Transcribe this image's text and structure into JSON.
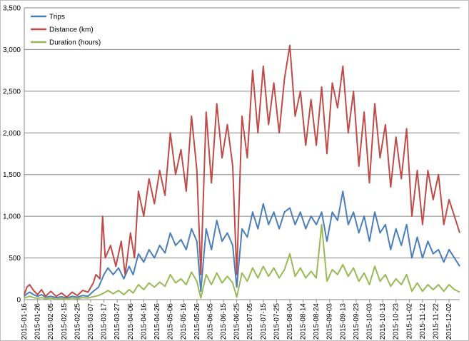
{
  "chart_data": {
    "type": "line",
    "title": "",
    "xlabel": "",
    "ylabel": "",
    "ylim": [
      0,
      3500
    ],
    "yticks": [
      0,
      500,
      1000,
      1500,
      2000,
      2500,
      3000,
      3500
    ],
    "ytick_labels": [
      "0",
      "500",
      "1,000",
      "1,500",
      "2,000",
      "2,500",
      "3,000",
      "3,500"
    ],
    "x_start": "2015-01-16",
    "x_end": "2015-12-10",
    "xtick_labels": [
      "2015-01-16",
      "2015-01-26",
      "2015-02-05",
      "2015-02-15",
      "2015-02-25",
      "2015-03-07",
      "2015-03-17",
      "2015-03-27",
      "2015-04-06",
      "2015-04-16",
      "2015-04-26",
      "2015-05-06",
      "2015-05-16",
      "2015-05-26",
      "2015-06-05",
      "2015-06-15",
      "2015-06-25",
      "2015-07-05",
      "2015-07-15",
      "2015-07-25",
      "2015-08-04",
      "2015-08-14",
      "2015-08-24",
      "2015-09-03",
      "2015-09-13",
      "2015-09-23",
      "2015-10-03",
      "2015-10-13",
      "2015-10-23",
      "2015-11-02",
      "2015-11-12",
      "2015-11-22",
      "2015-12-02"
    ],
    "grid": true,
    "legend_position": "top-left",
    "series": [
      {
        "name": "Trips",
        "color": "#4a7ebb",
        "points": [
          [
            "2015-01-16",
            40
          ],
          [
            "2015-01-18",
            70
          ],
          [
            "2015-01-20",
            90
          ],
          [
            "2015-01-23",
            60
          ],
          [
            "2015-01-26",
            40
          ],
          [
            "2015-01-29",
            60
          ],
          [
            "2015-02-01",
            30
          ],
          [
            "2015-02-05",
            40
          ],
          [
            "2015-02-09",
            25
          ],
          [
            "2015-02-13",
            35
          ],
          [
            "2015-02-17",
            20
          ],
          [
            "2015-02-21",
            40
          ],
          [
            "2015-02-25",
            30
          ],
          [
            "2015-03-01",
            50
          ],
          [
            "2015-03-05",
            40
          ],
          [
            "2015-03-09",
            100
          ],
          [
            "2015-03-13",
            150
          ],
          [
            "2015-03-17",
            300
          ],
          [
            "2015-03-20",
            380
          ],
          [
            "2015-03-24",
            300
          ],
          [
            "2015-03-28",
            380
          ],
          [
            "2015-04-01",
            250
          ],
          [
            "2015-04-05",
            400
          ],
          [
            "2015-04-08",
            300
          ],
          [
            "2015-04-12",
            550
          ],
          [
            "2015-04-16",
            450
          ],
          [
            "2015-04-20",
            600
          ],
          [
            "2015-04-24",
            500
          ],
          [
            "2015-04-28",
            650
          ],
          [
            "2015-05-02",
            560
          ],
          [
            "2015-05-06",
            800
          ],
          [
            "2015-05-10",
            650
          ],
          [
            "2015-05-14",
            720
          ],
          [
            "2015-05-18",
            600
          ],
          [
            "2015-05-22",
            850
          ],
          [
            "2015-05-26",
            700
          ],
          [
            "2015-05-29",
            100
          ],
          [
            "2015-06-02",
            850
          ],
          [
            "2015-06-06",
            600
          ],
          [
            "2015-06-10",
            950
          ],
          [
            "2015-06-14",
            700
          ],
          [
            "2015-06-18",
            800
          ],
          [
            "2015-06-22",
            650
          ],
          [
            "2015-06-25",
            150
          ],
          [
            "2015-06-29",
            850
          ],
          [
            "2015-07-03",
            750
          ],
          [
            "2015-07-07",
            1050
          ],
          [
            "2015-07-11",
            850
          ],
          [
            "2015-07-15",
            1150
          ],
          [
            "2015-07-19",
            900
          ],
          [
            "2015-07-23",
            1050
          ],
          [
            "2015-07-27",
            850
          ],
          [
            "2015-07-31",
            1050
          ],
          [
            "2015-08-04",
            1100
          ],
          [
            "2015-08-08",
            900
          ],
          [
            "2015-08-12",
            1050
          ],
          [
            "2015-08-16",
            850
          ],
          [
            "2015-08-20",
            1000
          ],
          [
            "2015-08-24",
            900
          ],
          [
            "2015-08-28",
            1050
          ],
          [
            "2015-09-01",
            700
          ],
          [
            "2015-09-05",
            1050
          ],
          [
            "2015-09-09",
            950
          ],
          [
            "2015-09-13",
            1300
          ],
          [
            "2015-09-17",
            900
          ],
          [
            "2015-09-21",
            1050
          ],
          [
            "2015-09-25",
            800
          ],
          [
            "2015-09-29",
            1000
          ],
          [
            "2015-10-03",
            700
          ],
          [
            "2015-10-07",
            1050
          ],
          [
            "2015-10-11",
            800
          ],
          [
            "2015-10-15",
            900
          ],
          [
            "2015-10-19",
            600
          ],
          [
            "2015-10-23",
            850
          ],
          [
            "2015-10-27",
            650
          ],
          [
            "2015-10-31",
            900
          ],
          [
            "2015-11-04",
            500
          ],
          [
            "2015-11-08",
            750
          ],
          [
            "2015-11-12",
            500
          ],
          [
            "2015-11-16",
            700
          ],
          [
            "2015-11-20",
            550
          ],
          [
            "2015-11-24",
            600
          ],
          [
            "2015-11-28",
            450
          ],
          [
            "2015-12-02",
            600
          ],
          [
            "2015-12-06",
            500
          ],
          [
            "2015-12-10",
            400
          ]
        ]
      },
      {
        "name": "Distance (km)",
        "color": "#be4b48",
        "points": [
          [
            "2015-01-16",
            60
          ],
          [
            "2015-01-18",
            150
          ],
          [
            "2015-01-20",
            180
          ],
          [
            "2015-01-23",
            110
          ],
          [
            "2015-01-26",
            60
          ],
          [
            "2015-01-29",
            120
          ],
          [
            "2015-02-01",
            40
          ],
          [
            "2015-02-05",
            100
          ],
          [
            "2015-02-09",
            40
          ],
          [
            "2015-02-13",
            80
          ],
          [
            "2015-02-17",
            30
          ],
          [
            "2015-02-21",
            90
          ],
          [
            "2015-02-25",
            50
          ],
          [
            "2015-03-01",
            110
          ],
          [
            "2015-03-05",
            90
          ],
          [
            "2015-03-09",
            200
          ],
          [
            "2015-03-11",
            300
          ],
          [
            "2015-03-14",
            250
          ],
          [
            "2015-03-16",
            1000
          ],
          [
            "2015-03-18",
            500
          ],
          [
            "2015-03-22",
            650
          ],
          [
            "2015-03-26",
            400
          ],
          [
            "2015-03-30",
            700
          ],
          [
            "2015-04-02",
            300
          ],
          [
            "2015-04-06",
            800
          ],
          [
            "2015-04-09",
            500
          ],
          [
            "2015-04-12",
            1300
          ],
          [
            "2015-04-16",
            1000
          ],
          [
            "2015-04-20",
            1450
          ],
          [
            "2015-04-24",
            1150
          ],
          [
            "2015-04-28",
            1550
          ],
          [
            "2015-05-02",
            1250
          ],
          [
            "2015-05-06",
            2000
          ],
          [
            "2015-05-10",
            1500
          ],
          [
            "2015-05-14",
            1800
          ],
          [
            "2015-05-18",
            1300
          ],
          [
            "2015-05-22",
            2200
          ],
          [
            "2015-05-26",
            1550
          ],
          [
            "2015-05-29",
            300
          ],
          [
            "2015-06-02",
            2250
          ],
          [
            "2015-06-06",
            1400
          ],
          [
            "2015-06-10",
            2350
          ],
          [
            "2015-06-14",
            1700
          ],
          [
            "2015-06-18",
            2100
          ],
          [
            "2015-06-22",
            1600
          ],
          [
            "2015-06-25",
            300
          ],
          [
            "2015-06-29",
            2200
          ],
          [
            "2015-07-03",
            1700
          ],
          [
            "2015-07-07",
            2750
          ],
          [
            "2015-07-11",
            2000
          ],
          [
            "2015-07-15",
            2800
          ],
          [
            "2015-07-19",
            2100
          ],
          [
            "2015-07-23",
            2600
          ],
          [
            "2015-07-27",
            2000
          ],
          [
            "2015-07-31",
            2650
          ],
          [
            "2015-08-04",
            3050
          ],
          [
            "2015-08-08",
            2200
          ],
          [
            "2015-08-12",
            2500
          ],
          [
            "2015-08-16",
            1850
          ],
          [
            "2015-08-20",
            2400
          ],
          [
            "2015-08-24",
            1850
          ],
          [
            "2015-08-28",
            2550
          ],
          [
            "2015-09-01",
            1750
          ],
          [
            "2015-09-05",
            2600
          ],
          [
            "2015-09-09",
            2300
          ],
          [
            "2015-09-13",
            2800
          ],
          [
            "2015-09-17",
            2000
          ],
          [
            "2015-09-21",
            2500
          ],
          [
            "2015-09-25",
            1600
          ],
          [
            "2015-09-29",
            2250
          ],
          [
            "2015-10-03",
            1400
          ],
          [
            "2015-10-07",
            2350
          ],
          [
            "2015-10-11",
            1700
          ],
          [
            "2015-10-15",
            2100
          ],
          [
            "2015-10-19",
            1350
          ],
          [
            "2015-10-23",
            1950
          ],
          [
            "2015-10-27",
            1450
          ],
          [
            "2015-10-31",
            2050
          ],
          [
            "2015-11-04",
            1000
          ],
          [
            "2015-11-08",
            1550
          ],
          [
            "2015-11-12",
            900
          ],
          [
            "2015-11-16",
            1550
          ],
          [
            "2015-11-20",
            1200
          ],
          [
            "2015-11-24",
            1500
          ],
          [
            "2015-11-28",
            900
          ],
          [
            "2015-12-02",
            1200
          ],
          [
            "2015-12-06",
            1000
          ],
          [
            "2015-12-10",
            800
          ]
        ]
      },
      {
        "name": "Duration (hours)",
        "color": "#98b954",
        "points": [
          [
            "2015-01-16",
            20
          ],
          [
            "2015-01-18",
            30
          ],
          [
            "2015-01-20",
            40
          ],
          [
            "2015-01-23",
            25
          ],
          [
            "2015-01-26",
            15
          ],
          [
            "2015-01-29",
            25
          ],
          [
            "2015-02-01",
            10
          ],
          [
            "2015-02-05",
            20
          ],
          [
            "2015-02-09",
            8
          ],
          [
            "2015-02-13",
            15
          ],
          [
            "2015-02-17",
            8
          ],
          [
            "2015-02-21",
            20
          ],
          [
            "2015-02-25",
            12
          ],
          [
            "2015-03-01",
            25
          ],
          [
            "2015-03-05",
            20
          ],
          [
            "2015-03-09",
            35
          ],
          [
            "2015-03-13",
            50
          ],
          [
            "2015-03-17",
            80
          ],
          [
            "2015-03-20",
            110
          ],
          [
            "2015-03-24",
            70
          ],
          [
            "2015-03-28",
            110
          ],
          [
            "2015-04-01",
            60
          ],
          [
            "2015-04-05",
            120
          ],
          [
            "2015-04-08",
            80
          ],
          [
            "2015-04-12",
            180
          ],
          [
            "2015-04-16",
            120
          ],
          [
            "2015-04-20",
            200
          ],
          [
            "2015-04-24",
            150
          ],
          [
            "2015-04-28",
            210
          ],
          [
            "2015-05-02",
            160
          ],
          [
            "2015-05-06",
            300
          ],
          [
            "2015-05-10",
            200
          ],
          [
            "2015-05-14",
            250
          ],
          [
            "2015-05-18",
            180
          ],
          [
            "2015-05-22",
            330
          ],
          [
            "2015-05-26",
            220
          ],
          [
            "2015-05-29",
            20
          ],
          [
            "2015-06-02",
            300
          ],
          [
            "2015-06-06",
            180
          ],
          [
            "2015-06-10",
            320
          ],
          [
            "2015-06-14",
            200
          ],
          [
            "2015-06-18",
            280
          ],
          [
            "2015-06-22",
            200
          ],
          [
            "2015-06-25",
            30
          ],
          [
            "2015-06-29",
            320
          ],
          [
            "2015-07-03",
            220
          ],
          [
            "2015-07-07",
            380
          ],
          [
            "2015-07-11",
            260
          ],
          [
            "2015-07-15",
            400
          ],
          [
            "2015-07-19",
            280
          ],
          [
            "2015-07-23",
            380
          ],
          [
            "2015-07-27",
            260
          ],
          [
            "2015-07-31",
            360
          ],
          [
            "2015-08-04",
            550
          ],
          [
            "2015-08-08",
            280
          ],
          [
            "2015-08-12",
            380
          ],
          [
            "2015-08-16",
            260
          ],
          [
            "2015-08-20",
            340
          ],
          [
            "2015-08-24",
            260
          ],
          [
            "2015-08-28",
            900
          ],
          [
            "2015-09-01",
            220
          ],
          [
            "2015-09-05",
            360
          ],
          [
            "2015-09-09",
            300
          ],
          [
            "2015-09-13",
            420
          ],
          [
            "2015-09-17",
            280
          ],
          [
            "2015-09-21",
            380
          ],
          [
            "2015-09-25",
            220
          ],
          [
            "2015-09-29",
            320
          ],
          [
            "2015-10-03",
            180
          ],
          [
            "2015-10-07",
            400
          ],
          [
            "2015-10-11",
            220
          ],
          [
            "2015-10-15",
            300
          ],
          [
            "2015-10-19",
            160
          ],
          [
            "2015-10-23",
            250
          ],
          [
            "2015-10-27",
            180
          ],
          [
            "2015-10-31",
            300
          ],
          [
            "2015-11-04",
            100
          ],
          [
            "2015-11-08",
            200
          ],
          [
            "2015-11-12",
            100
          ],
          [
            "2015-11-16",
            180
          ],
          [
            "2015-11-20",
            120
          ],
          [
            "2015-11-24",
            180
          ],
          [
            "2015-11-28",
            100
          ],
          [
            "2015-12-02",
            180
          ],
          [
            "2015-12-06",
            120
          ],
          [
            "2015-12-10",
            90
          ]
        ]
      }
    ]
  }
}
